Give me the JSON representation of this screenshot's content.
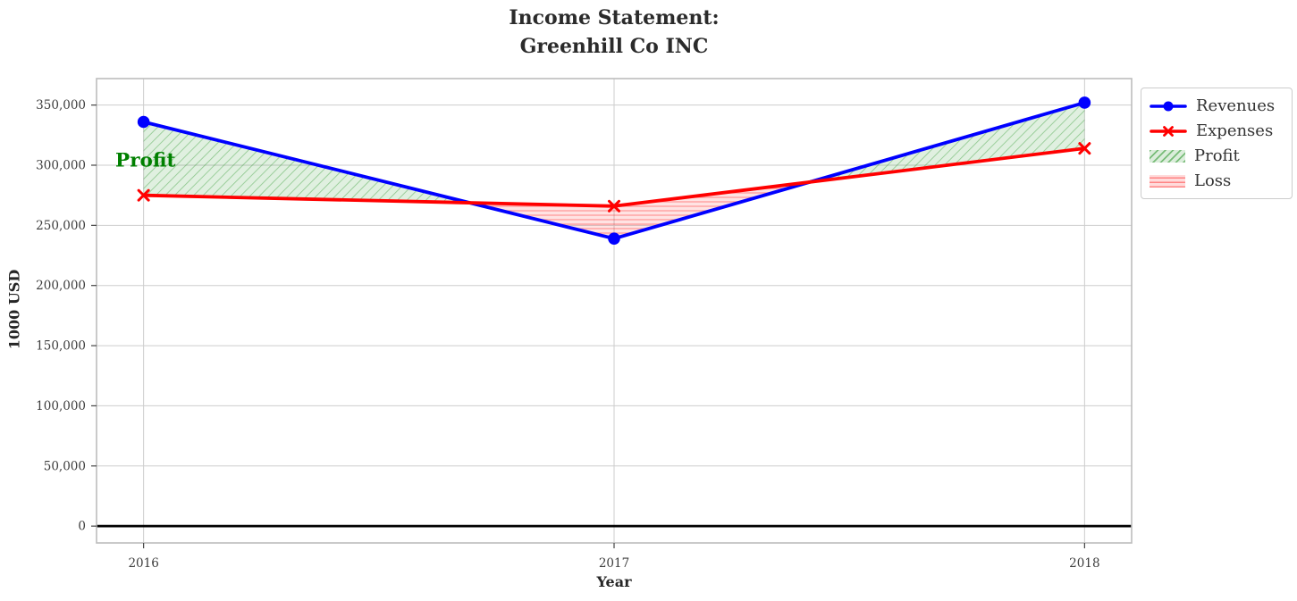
{
  "chart_data": {
    "type": "line",
    "title": "Income Statement:\nGreenhill Co INC",
    "title_lines": [
      "Income Statement:",
      "Greenhill Co INC"
    ],
    "xlabel": "Year",
    "ylabel": "1000 USD",
    "x": [
      2016,
      2017,
      2018
    ],
    "xtick_labels": [
      "2016",
      "2017",
      "2018"
    ],
    "yticks": [
      0,
      50000,
      100000,
      150000,
      200000,
      250000,
      300000,
      350000
    ],
    "ytick_labels": [
      "0",
      "50,000",
      "100,000",
      "150,000",
      "200,000",
      "250,000",
      "300,000",
      "350,000"
    ],
    "xlim": [
      2015.9,
      2018.1
    ],
    "ylim": [
      -14000,
      372000
    ],
    "grid": true,
    "zero_line": {
      "value": 0,
      "color": "#000000"
    },
    "series": [
      {
        "name": "Revenues",
        "color": "#0000ff",
        "marker": "circle",
        "values": [
          336000,
          239000,
          352000
        ]
      },
      {
        "name": "Expenses",
        "color": "#ff0000",
        "marker": "x",
        "values": [
          275000,
          266000,
          314000
        ]
      }
    ],
    "fills": [
      {
        "name": "Profit",
        "condition": "revenues_above_expenses",
        "color": "#008000",
        "hatch": "diagonal"
      },
      {
        "name": "Loss",
        "condition": "expenses_above_revenues",
        "color": "#ff0000",
        "hatch": "horizontal"
      }
    ],
    "annotations": [
      {
        "text": "Profit",
        "x": 2015.94,
        "y": 299000,
        "color": "#008000"
      }
    ],
    "legend": {
      "position": "upper-right-outside",
      "items": [
        "Revenues",
        "Expenses",
        "Profit",
        "Loss"
      ]
    },
    "colors": {
      "grid": "#cdcdcd",
      "spine": "#bdbdbd",
      "tick": "#444444",
      "tick_label": "#3d3d3d"
    }
  }
}
